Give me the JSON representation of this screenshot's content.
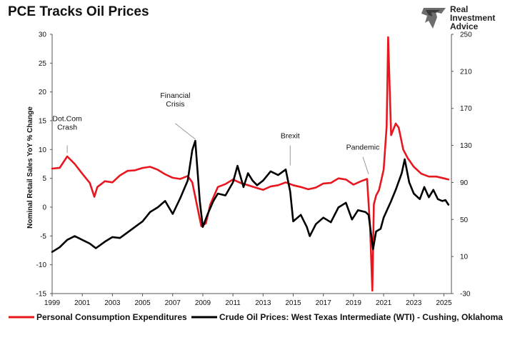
{
  "chart_data": {
    "type": "line",
    "title": "PCE Tracks Oil Prices",
    "ylabel_left": "Nominal Retail Sales YoY % Change",
    "ylim_left": [
      -15,
      30
    ],
    "ylim_right": [
      -30,
      250
    ],
    "yticks_left": [
      "30",
      "25",
      "20",
      "15",
      "10",
      "5",
      "0",
      "-5",
      "-10",
      "-15"
    ],
    "yticks_right": [
      "250",
      "210",
      "170",
      "130",
      "90",
      "50",
      "10",
      "-30"
    ],
    "xlim": [
      1999.0,
      2025.5
    ],
    "xticks": [
      "1999",
      "2001",
      "2003",
      "2005",
      "2007",
      "2009",
      "2011",
      "2013",
      "2015",
      "2017",
      "2019",
      "2021",
      "2023",
      "2025"
    ],
    "grid": false,
    "legend_position": "bottom",
    "annotations": [
      {
        "lines": [
          "Dot.Com",
          "Crash"
        ],
        "x": 2000.0,
        "y": 9.0
      },
      {
        "lines": [
          "Financial",
          "Crisis"
        ],
        "x": 2008.5,
        "y": 11.3
      },
      {
        "lines": [
          "Brexit"
        ],
        "x": 2014.8,
        "y": 6.5
      },
      {
        "lines": [
          "Pandemic"
        ],
        "x": 2020.0,
        "y": 5.0
      }
    ],
    "series": [
      {
        "name": "Personal Consumption Expenditures",
        "axis": "left",
        "color": "#e8171f",
        "x": [
          1999.0,
          1999.5,
          2000.0,
          2000.5,
          2001.0,
          2001.5,
          2001.8,
          2002.0,
          2002.5,
          2003.0,
          2003.5,
          2004.0,
          2004.5,
          2005.0,
          2005.5,
          2006.0,
          2006.5,
          2007.0,
          2007.5,
          2008.0,
          2008.3,
          2008.6,
          2008.9,
          2009.2,
          2009.5,
          2010.0,
          2010.5,
          2011.0,
          2011.5,
          2012.0,
          2012.5,
          2013.0,
          2013.5,
          2014.0,
          2014.5,
          2015.0,
          2015.5,
          2016.0,
          2016.5,
          2017.0,
          2017.5,
          2018.0,
          2018.5,
          2019.0,
          2019.5,
          2019.9,
          2020.1,
          2020.25,
          2020.35,
          2020.5,
          2020.7,
          2021.0,
          2021.2,
          2021.3,
          2021.5,
          2021.8,
          2022.0,
          2022.3,
          2022.6,
          2023.0,
          2023.5,
          2024.0,
          2024.5,
          2025.0,
          2025.3
        ],
        "values": [
          6.7,
          6.8,
          8.8,
          7.5,
          5.8,
          4.2,
          1.8,
          3.5,
          4.5,
          4.3,
          5.5,
          6.3,
          6.4,
          6.8,
          7.0,
          6.5,
          5.7,
          5.1,
          4.9,
          5.4,
          4.3,
          0.5,
          -3.3,
          -2.8,
          0.5,
          3.5,
          4.0,
          4.8,
          4.2,
          3.8,
          3.4,
          3.0,
          3.6,
          3.8,
          4.3,
          3.8,
          3.5,
          3.1,
          3.4,
          4.1,
          4.2,
          5.0,
          4.8,
          3.9,
          4.5,
          4.9,
          -3.5,
          -14.5,
          0.5,
          2.0,
          3.0,
          6.5,
          14.0,
          29.5,
          12.5,
          14.5,
          13.8,
          10.0,
          8.5,
          7.0,
          5.8,
          5.3,
          5.3,
          5.0,
          4.8
        ]
      },
      {
        "name": "Crude Oil Prices: West Texas Intermediate (WTI) - Cushing, Oklahoma",
        "axis": "right",
        "color": "#000000",
        "x": [
          1999.0,
          1999.5,
          2000.0,
          2000.5,
          2001.0,
          2001.5,
          2001.9,
          2002.5,
          2003.0,
          2003.5,
          2004.0,
          2004.5,
          2005.0,
          2005.5,
          2006.0,
          2006.5,
          2007.0,
          2007.5,
          2008.0,
          2008.3,
          2008.5,
          2008.8,
          2009.0,
          2009.3,
          2009.7,
          2010.0,
          2010.5,
          2011.0,
          2011.3,
          2011.7,
          2012.0,
          2012.3,
          2012.6,
          2013.0,
          2013.5,
          2014.0,
          2014.5,
          2014.8,
          2015.0,
          2015.5,
          2015.9,
          2016.1,
          2016.5,
          2017.0,
          2017.5,
          2018.0,
          2018.5,
          2018.9,
          2019.3,
          2019.8,
          2020.0,
          2020.3,
          2020.5,
          2020.8,
          2021.0,
          2021.5,
          2021.8,
          2022.2,
          2022.4,
          2022.7,
          2023.0,
          2023.4,
          2023.7,
          2024.0,
          2024.3,
          2024.6,
          2024.9,
          2025.1,
          2025.3
        ],
        "values": [
          15,
          20,
          28,
          32,
          28,
          24,
          19,
          26,
          31,
          30,
          36,
          42,
          48,
          58,
          63,
          70,
          56,
          73,
          92,
          125,
          135,
          70,
          42,
          55,
          70,
          78,
          76,
          90,
          108,
          85,
          100,
          92,
          87,
          92,
          102,
          98,
          104,
          80,
          48,
          55,
          42,
          32,
          45,
          52,
          47,
          63,
          68,
          50,
          60,
          58,
          55,
          18,
          37,
          40,
          52,
          70,
          82,
          100,
          115,
          90,
          78,
          72,
          85,
          74,
          82,
          72,
          70,
          71,
          66
        ]
      }
    ]
  },
  "logo": {
    "text_lines": [
      "Real",
      "Investment",
      "Advice"
    ],
    "icon": "eagle-icon"
  }
}
